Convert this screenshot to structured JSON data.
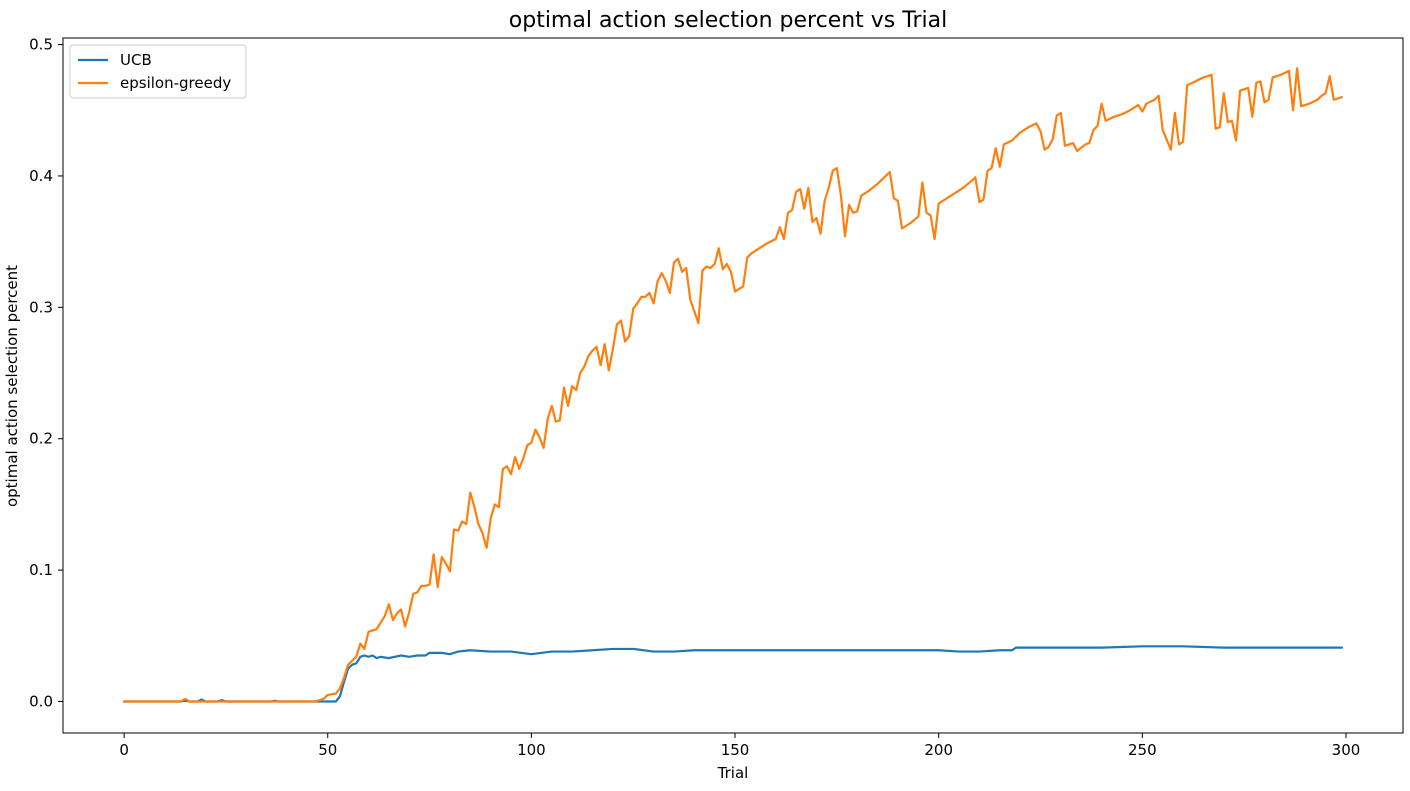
{
  "chart_data": {
    "type": "line",
    "title": "optimal action selection percent vs Trial",
    "xlabel": "Trial",
    "ylabel": "optimal action selection percent",
    "xlim": [
      -15,
      314
    ],
    "ylim": [
      -0.024,
      0.505
    ],
    "xticks": [
      0,
      50,
      100,
      150,
      200,
      250,
      300
    ],
    "yticks": [
      0.0,
      0.1,
      0.2,
      0.3,
      0.4,
      0.5
    ],
    "grid": false,
    "legend_position": "top-left",
    "series": [
      {
        "name": "UCB",
        "color": "#1f77b4",
        "points": [
          [
            0,
            0.0
          ],
          [
            14,
            0.0
          ],
          [
            15,
            0.0005
          ],
          [
            16,
            0.0
          ],
          [
            18,
            0.0
          ],
          [
            19,
            0.0015
          ],
          [
            20,
            0.0
          ],
          [
            23,
            0.0
          ],
          [
            24,
            0.001
          ],
          [
            25,
            0.0
          ],
          [
            36,
            0.0
          ],
          [
            37,
            0.0005
          ],
          [
            38,
            0.0
          ],
          [
            52,
            0.0
          ],
          [
            53,
            0.004
          ],
          [
            54,
            0.015
          ],
          [
            55,
            0.025
          ],
          [
            56,
            0.028
          ],
          [
            57,
            0.029
          ],
          [
            58,
            0.034
          ],
          [
            59,
            0.035
          ],
          [
            60,
            0.034
          ],
          [
            61,
            0.035
          ],
          [
            62,
            0.033
          ],
          [
            63,
            0.034
          ],
          [
            65,
            0.033
          ],
          [
            68,
            0.035
          ],
          [
            70,
            0.034
          ],
          [
            72,
            0.035
          ],
          [
            74,
            0.035
          ],
          [
            75,
            0.037
          ],
          [
            78,
            0.037
          ],
          [
            80,
            0.036
          ],
          [
            82,
            0.038
          ],
          [
            85,
            0.039
          ],
          [
            90,
            0.038
          ],
          [
            95,
            0.038
          ],
          [
            100,
            0.036
          ],
          [
            105,
            0.038
          ],
          [
            110,
            0.038
          ],
          [
            115,
            0.039
          ],
          [
            120,
            0.04
          ],
          [
            125,
            0.04
          ],
          [
            130,
            0.038
          ],
          [
            135,
            0.038
          ],
          [
            140,
            0.039
          ],
          [
            145,
            0.039
          ],
          [
            150,
            0.039
          ],
          [
            155,
            0.039
          ],
          [
            160,
            0.039
          ],
          [
            170,
            0.039
          ],
          [
            180,
            0.039
          ],
          [
            190,
            0.039
          ],
          [
            200,
            0.039
          ],
          [
            205,
            0.038
          ],
          [
            210,
            0.038
          ],
          [
            215,
            0.039
          ],
          [
            218,
            0.039
          ],
          [
            219,
            0.041
          ],
          [
            225,
            0.041
          ],
          [
            230,
            0.041
          ],
          [
            240,
            0.041
          ],
          [
            250,
            0.042
          ],
          [
            260,
            0.042
          ],
          [
            270,
            0.041
          ],
          [
            280,
            0.041
          ],
          [
            290,
            0.041
          ],
          [
            299,
            0.041
          ]
        ]
      },
      {
        "name": "epsilon-greedy",
        "color": "#ff7f0e",
        "points": [
          [
            0,
            0.0
          ],
          [
            14,
            0.0
          ],
          [
            15,
            0.002
          ],
          [
            16,
            0.0
          ],
          [
            47,
            0.0
          ],
          [
            48,
            0.001
          ],
          [
            49,
            0.002
          ],
          [
            50,
            0.005
          ],
          [
            52,
            0.006
          ],
          [
            53,
            0.01
          ],
          [
            54,
            0.018
          ],
          [
            55,
            0.028
          ],
          [
            56,
            0.031
          ],
          [
            57,
            0.034
          ],
          [
            58,
            0.044
          ],
          [
            59,
            0.04
          ],
          [
            60,
            0.053
          ],
          [
            62,
            0.055
          ],
          [
            64,
            0.065
          ],
          [
            65,
            0.074
          ],
          [
            66,
            0.062
          ],
          [
            67,
            0.067
          ],
          [
            68,
            0.07
          ],
          [
            69,
            0.057
          ],
          [
            70,
            0.068
          ],
          [
            71,
            0.082
          ],
          [
            72,
            0.083
          ],
          [
            73,
            0.088
          ],
          [
            74,
            0.088
          ],
          [
            75,
            0.089
          ],
          [
            76,
            0.112
          ],
          [
            77,
            0.087
          ],
          [
            78,
            0.11
          ],
          [
            79,
            0.105
          ],
          [
            80,
            0.099
          ],
          [
            81,
            0.131
          ],
          [
            82,
            0.13
          ],
          [
            83,
            0.137
          ],
          [
            84,
            0.135
          ],
          [
            85,
            0.159
          ],
          [
            86,
            0.148
          ],
          [
            87,
            0.135
          ],
          [
            88,
            0.128
          ],
          [
            89,
            0.117
          ],
          [
            90,
            0.139
          ],
          [
            91,
            0.15
          ],
          [
            92,
            0.148
          ],
          [
            93,
            0.177
          ],
          [
            94,
            0.179
          ],
          [
            95,
            0.173
          ],
          [
            96,
            0.186
          ],
          [
            97,
            0.177
          ],
          [
            98,
            0.185
          ],
          [
            99,
            0.195
          ],
          [
            100,
            0.197
          ],
          [
            101,
            0.207
          ],
          [
            102,
            0.201
          ],
          [
            103,
            0.193
          ],
          [
            104,
            0.215
          ],
          [
            105,
            0.225
          ],
          [
            106,
            0.213
          ],
          [
            107,
            0.214
          ],
          [
            108,
            0.239
          ],
          [
            109,
            0.225
          ],
          [
            110,
            0.24
          ],
          [
            111,
            0.237
          ],
          [
            112,
            0.25
          ],
          [
            113,
            0.255
          ],
          [
            114,
            0.263
          ],
          [
            115,
            0.267
          ],
          [
            116,
            0.27
          ],
          [
            117,
            0.256
          ],
          [
            118,
            0.272
          ],
          [
            119,
            0.252
          ],
          [
            120,
            0.268
          ],
          [
            121,
            0.287
          ],
          [
            122,
            0.29
          ],
          [
            123,
            0.274
          ],
          [
            124,
            0.278
          ],
          [
            125,
            0.299
          ],
          [
            126,
            0.303
          ],
          [
            127,
            0.308
          ],
          [
            128,
            0.308
          ],
          [
            129,
            0.311
          ],
          [
            130,
            0.303
          ],
          [
            131,
            0.32
          ],
          [
            132,
            0.326
          ],
          [
            133,
            0.32
          ],
          [
            134,
            0.311
          ],
          [
            135,
            0.334
          ],
          [
            136,
            0.337
          ],
          [
            137,
            0.327
          ],
          [
            138,
            0.33
          ],
          [
            139,
            0.306
          ],
          [
            141,
            0.288
          ],
          [
            142,
            0.328
          ],
          [
            143,
            0.331
          ],
          [
            144,
            0.33
          ],
          [
            145,
            0.333
          ],
          [
            146,
            0.345
          ],
          [
            147,
            0.329
          ],
          [
            148,
            0.333
          ],
          [
            149,
            0.327
          ],
          [
            150,
            0.312
          ],
          [
            152,
            0.316
          ],
          [
            153,
            0.338
          ],
          [
            154,
            0.341
          ],
          [
            156,
            0.345
          ],
          [
            158,
            0.349
          ],
          [
            160,
            0.352
          ],
          [
            161,
            0.361
          ],
          [
            162,
            0.352
          ],
          [
            163,
            0.372
          ],
          [
            164,
            0.374
          ],
          [
            165,
            0.388
          ],
          [
            166,
            0.39
          ],
          [
            167,
            0.375
          ],
          [
            168,
            0.391
          ],
          [
            169,
            0.365
          ],
          [
            170,
            0.368
          ],
          [
            171,
            0.356
          ],
          [
            172,
            0.381
          ],
          [
            173,
            0.391
          ],
          [
            174,
            0.404
          ],
          [
            175,
            0.406
          ],
          [
            176,
            0.385
          ],
          [
            177,
            0.354
          ],
          [
            178,
            0.378
          ],
          [
            179,
            0.372
          ],
          [
            180,
            0.373
          ],
          [
            181,
            0.385
          ],
          [
            183,
            0.389
          ],
          [
            185,
            0.394
          ],
          [
            187,
            0.4
          ],
          [
            188,
            0.403
          ],
          [
            189,
            0.383
          ],
          [
            190,
            0.381
          ],
          [
            191,
            0.36
          ],
          [
            193,
            0.364
          ],
          [
            195,
            0.369
          ],
          [
            196,
            0.395
          ],
          [
            197,
            0.372
          ],
          [
            198,
            0.37
          ],
          [
            199,
            0.352
          ],
          [
            200,
            0.379
          ],
          [
            202,
            0.383
          ],
          [
            204,
            0.387
          ],
          [
            206,
            0.391
          ],
          [
            208,
            0.396
          ],
          [
            209,
            0.399
          ],
          [
            210,
            0.38
          ],
          [
            211,
            0.382
          ],
          [
            212,
            0.404
          ],
          [
            213,
            0.406
          ],
          [
            214,
            0.421
          ],
          [
            215,
            0.407
          ],
          [
            216,
            0.424
          ],
          [
            218,
            0.427
          ],
          [
            220,
            0.433
          ],
          [
            222,
            0.437
          ],
          [
            224,
            0.44
          ],
          [
            225,
            0.434
          ],
          [
            226,
            0.42
          ],
          [
            227,
            0.422
          ],
          [
            228,
            0.428
          ],
          [
            229,
            0.446
          ],
          [
            230,
            0.448
          ],
          [
            231,
            0.423
          ],
          [
            232,
            0.424
          ],
          [
            233,
            0.425
          ],
          [
            234,
            0.419
          ],
          [
            236,
            0.424
          ],
          [
            237,
            0.425
          ],
          [
            238,
            0.435
          ],
          [
            239,
            0.438
          ],
          [
            240,
            0.455
          ],
          [
            241,
            0.442
          ],
          [
            243,
            0.445
          ],
          [
            245,
            0.447
          ],
          [
            247,
            0.45
          ],
          [
            249,
            0.454
          ],
          [
            250,
            0.449
          ],
          [
            251,
            0.455
          ],
          [
            253,
            0.458
          ],
          [
            254,
            0.461
          ],
          [
            255,
            0.435
          ],
          [
            257,
            0.42
          ],
          [
            258,
            0.448
          ],
          [
            259,
            0.424
          ],
          [
            260,
            0.426
          ],
          [
            261,
            0.469
          ],
          [
            263,
            0.472
          ],
          [
            265,
            0.475
          ],
          [
            267,
            0.477
          ],
          [
            268,
            0.436
          ],
          [
            269,
            0.437
          ],
          [
            270,
            0.463
          ],
          [
            271,
            0.441
          ],
          [
            272,
            0.442
          ],
          [
            273,
            0.427
          ],
          [
            274,
            0.465
          ],
          [
            276,
            0.467
          ],
          [
            277,
            0.445
          ],
          [
            278,
            0.471
          ],
          [
            279,
            0.472
          ],
          [
            280,
            0.456
          ],
          [
            281,
            0.458
          ],
          [
            282,
            0.475
          ],
          [
            284,
            0.477
          ],
          [
            286,
            0.48
          ],
          [
            287,
            0.45
          ],
          [
            288,
            0.482
          ],
          [
            289,
            0.453
          ],
          [
            291,
            0.455
          ],
          [
            293,
            0.458
          ],
          [
            294,
            0.461
          ],
          [
            295,
            0.463
          ],
          [
            296,
            0.476
          ],
          [
            297,
            0.458
          ],
          [
            299,
            0.46
          ]
        ]
      }
    ]
  }
}
